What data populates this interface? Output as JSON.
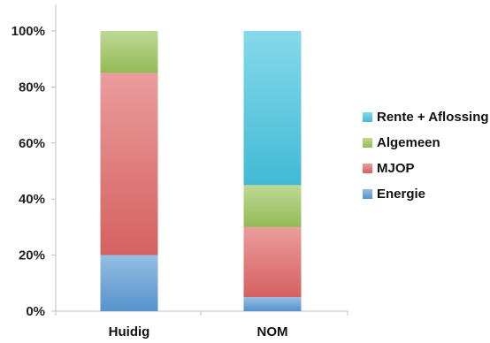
{
  "chart_data": {
    "type": "bar",
    "stacked": true,
    "categories": [
      "Huidig",
      "NOM"
    ],
    "series": [
      {
        "name": "Energie",
        "values": [
          20,
          5
        ],
        "color": "#5b9bd5"
      },
      {
        "name": "MJOP",
        "values": [
          65,
          25
        ],
        "color": "#e06666"
      },
      {
        "name": "Algemeen",
        "values": [
          15,
          15
        ],
        "color": "#9bc45a"
      },
      {
        "name": "Rente + Aflossing",
        "values": [
          0,
          55
        ],
        "color": "#45c4e0"
      }
    ],
    "ylim": [
      0,
      100
    ],
    "yticks": [
      0,
      20,
      40,
      60,
      80,
      100
    ],
    "ytick_format": "%",
    "legend_position": "right",
    "grid": false
  }
}
